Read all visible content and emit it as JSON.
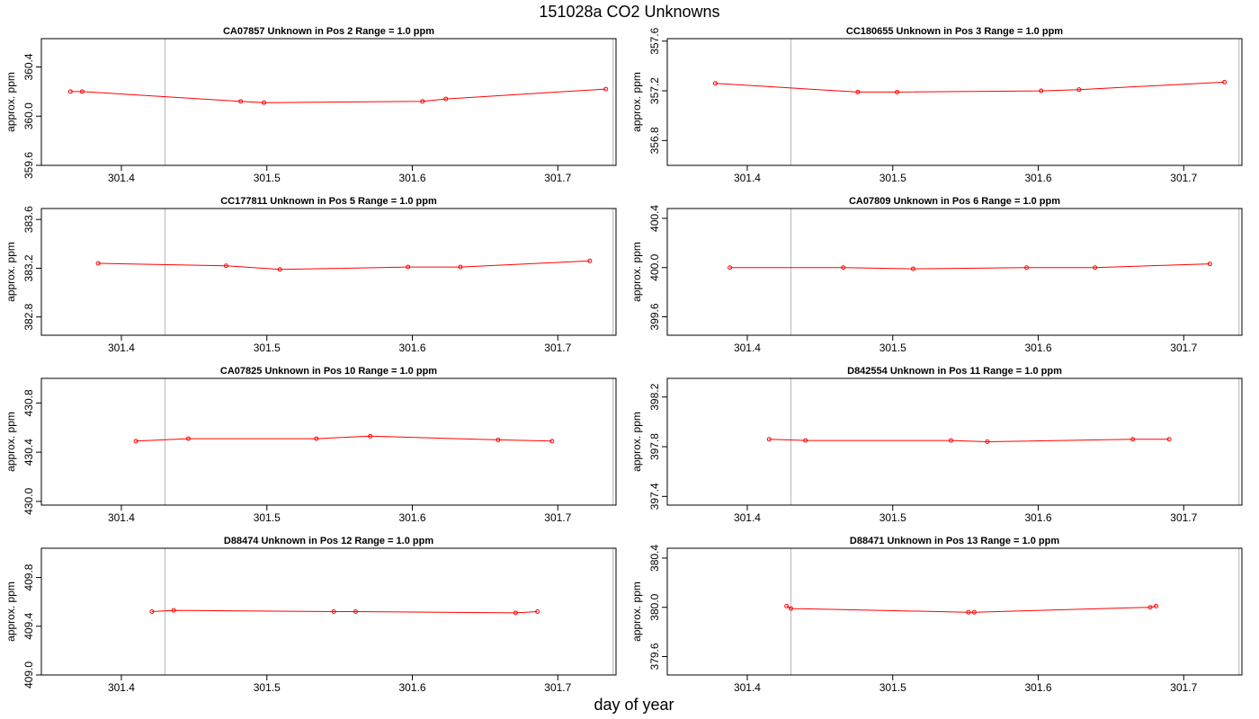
{
  "page": {
    "title": "151028a  CO2 Unknowns",
    "xlabel": "day of year"
  },
  "colors": {
    "series": "#ff0000",
    "frame": "#000000",
    "vline": "#bebebe"
  },
  "chart_data": [
    {
      "type": "line",
      "title": "CA07857    Unknown in Pos 2          Range = 1.0 ppm",
      "ylabel": "approx. ppm",
      "xlim": [
        301.345,
        301.74
      ],
      "ylim": [
        359.6,
        360.63
      ],
      "xticks": [
        "301.4",
        "301.5",
        "301.6",
        "301.7"
      ],
      "yticks": [
        "359.6",
        "360.0",
        "360.4"
      ],
      "vlines": [
        301.43,
        301.738
      ],
      "x": [
        301.365,
        301.373,
        301.482,
        301.498,
        301.607,
        301.623,
        301.733
      ],
      "y": [
        360.2,
        360.2,
        360.12,
        360.11,
        360.12,
        360.14,
        360.22
      ]
    },
    {
      "type": "line",
      "title": "CC180655    Unknown in Pos 3          Range = 1.0 ppm",
      "ylabel": "approx. ppm",
      "xlim": [
        301.345,
        301.74
      ],
      "ylim": [
        356.6,
        357.62
      ],
      "xticks": [
        "301.4",
        "301.5",
        "301.6",
        "301.7"
      ],
      "yticks": [
        "356.8",
        "357.2",
        "357.6"
      ],
      "vlines": [
        301.43,
        301.738
      ],
      "x": [
        301.378,
        301.476,
        301.503,
        301.602,
        301.628,
        301.728
      ],
      "y": [
        357.26,
        357.19,
        357.19,
        357.2,
        357.21,
        357.27
      ]
    },
    {
      "type": "line",
      "title": "CC177811    Unknown in Pos 5          Range = 1.0 ppm",
      "ylabel": "approx. ppm",
      "xlim": [
        301.345,
        301.74
      ],
      "ylim": [
        382.65,
        383.69
      ],
      "xticks": [
        "301.4",
        "301.5",
        "301.6",
        "301.7"
      ],
      "yticks": [
        "382.8",
        "383.2",
        "383.6"
      ],
      "vlines": [
        301.43,
        301.738
      ],
      "x": [
        301.384,
        301.472,
        301.509,
        301.597,
        301.633,
        301.722
      ],
      "y": [
        383.24,
        383.22,
        383.19,
        383.21,
        383.21,
        383.26
      ]
    },
    {
      "type": "line",
      "title": "CA07809    Unknown in Pos 6          Range = 1.0 ppm",
      "ylabel": "approx. ppm",
      "xlim": [
        301.345,
        301.74
      ],
      "ylim": [
        399.45,
        400.48
      ],
      "xticks": [
        "301.4",
        "301.5",
        "301.6",
        "301.7"
      ],
      "yticks": [
        "399.6",
        "400.0",
        "400.4"
      ],
      "vlines": [
        301.43,
        301.738
      ],
      "x": [
        301.388,
        301.466,
        301.514,
        301.592,
        301.639,
        301.718
      ],
      "y": [
        400.0,
        400.0,
        399.99,
        400.0,
        400.0,
        400.03
      ]
    },
    {
      "type": "line",
      "title": "CA07825    Unknown in Pos 10          Range = 1.0 ppm",
      "ylabel": "approx. ppm",
      "xlim": [
        301.345,
        301.74
      ],
      "ylim": [
        429.97,
        431.0
      ],
      "xticks": [
        "301.4",
        "301.5",
        "301.6",
        "301.7"
      ],
      "yticks": [
        "430.0",
        "430.4",
        "430.8"
      ],
      "vlines": [
        301.43,
        301.738
      ],
      "x": [
        301.41,
        301.446,
        301.534,
        301.571,
        301.659,
        301.696
      ],
      "y": [
        430.49,
        430.51,
        430.51,
        430.53,
        430.5,
        430.49
      ]
    },
    {
      "type": "line",
      "title": "D842554    Unknown in Pos 11          Range = 1.0 ppm",
      "ylabel": "approx. ppm",
      "xlim": [
        301.345,
        301.74
      ],
      "ylim": [
        397.33,
        398.35
      ],
      "xticks": [
        "301.4",
        "301.5",
        "301.6",
        "301.7"
      ],
      "yticks": [
        "397.4",
        "397.8",
        "398.2"
      ],
      "vlines": [
        301.43,
        301.738
      ],
      "x": [
        301.415,
        301.44,
        301.54,
        301.565,
        301.665,
        301.69
      ],
      "y": [
        397.86,
        397.85,
        397.85,
        397.84,
        397.86,
        397.86
      ]
    },
    {
      "type": "line",
      "title": "D88474    Unknown in Pos 12          Range = 1.0 ppm",
      "ylabel": "approx. ppm",
      "xlim": [
        301.345,
        301.74
      ],
      "ylim": [
        409.0,
        410.04
      ],
      "xticks": [
        "301.4",
        "301.5",
        "301.6",
        "301.7"
      ],
      "yticks": [
        "409.0",
        "409.4",
        "409.8"
      ],
      "vlines": [
        301.43,
        301.738
      ],
      "x": [
        301.421,
        301.436,
        301.546,
        301.561,
        301.671,
        301.686
      ],
      "y": [
        409.52,
        409.53,
        409.52,
        409.52,
        409.51,
        409.52
      ]
    },
    {
      "type": "line",
      "title": "D88471    Unknown in Pos 13          Range = 1.0 ppm",
      "ylabel": "approx. ppm",
      "xlim": [
        301.345,
        301.74
      ],
      "ylim": [
        379.45,
        380.48
      ],
      "xticks": [
        "301.4",
        "301.5",
        "301.6",
        "301.7"
      ],
      "yticks": [
        "379.6",
        "380.0",
        "380.4"
      ],
      "vlines": [
        301.43,
        301.738
      ],
      "x": [
        301.427,
        301.43,
        301.552,
        301.556,
        301.677,
        301.681
      ],
      "y": [
        380.01,
        379.99,
        379.96,
        379.96,
        380.0,
        380.01
      ]
    }
  ]
}
